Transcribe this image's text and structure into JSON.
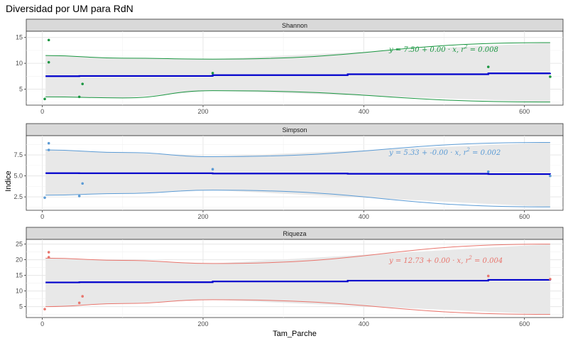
{
  "chart_data": {
    "type": "scatter",
    "title": "Diversidad por UM para RdN",
    "xlabel": "Tam_Parche",
    "ylabel": "Indice",
    "xlim": [
      -20,
      648
    ],
    "x_ticks": [
      0,
      200,
      400,
      600
    ],
    "grid": true,
    "legend": "none",
    "panels": [
      {
        "strip": "Shannon",
        "color": "#1a9641",
        "ylim": [
          1.9,
          16.2
        ],
        "y_ticks": [
          5,
          10,
          15
        ],
        "y_tick_labels": [
          "5",
          "10",
          "15"
        ],
        "points": [
          [
            3,
            3.1
          ],
          [
            8,
            14.5
          ],
          [
            8,
            10.2
          ],
          [
            46,
            3.5
          ],
          [
            50,
            6.0
          ],
          [
            212,
            8.1
          ],
          [
            555,
            9.3
          ],
          [
            632,
            7.4
          ]
        ],
        "fit": {
          "intercept": 7.5,
          "slope": 0.001,
          "x_range": [
            4,
            632
          ],
          "band_low": [
            3.5,
            3.3,
            4.7,
            2.5
          ],
          "band_high": [
            11.5,
            11.0,
            10.8,
            14.0
          ],
          "band_x": [
            4,
            100,
            212,
            632
          ]
        },
        "equation": {
          "prefix": "y = 7.50 + 0.00 · x,",
          "r2_label": "r",
          "r2_exp": "2",
          "r2_value": " = 0.008"
        }
      },
      {
        "strip": "Simpson",
        "color": "#5b9bd5",
        "ylim": [
          0.9,
          9.8
        ],
        "y_ticks": [
          2.5,
          5.0,
          7.5
        ],
        "y_tick_labels": [
          "2.5",
          "5.0",
          "7.5"
        ],
        "points": [
          [
            3,
            2.4
          ],
          [
            8,
            8.9
          ],
          [
            8,
            8.1
          ],
          [
            46,
            2.6
          ],
          [
            50,
            4.1
          ],
          [
            212,
            5.8
          ],
          [
            555,
            5.5
          ],
          [
            632,
            5.0
          ]
        ],
        "fit": {
          "intercept": 5.33,
          "slope": -0.0002,
          "x_range": [
            4,
            632
          ],
          "band_low": [
            2.7,
            2.9,
            3.3,
            1.3
          ],
          "band_high": [
            8.1,
            7.8,
            7.3,
            9.0
          ],
          "band_x": [
            4,
            100,
            212,
            632
          ]
        },
        "equation": {
          "prefix": "y = 5.33 + -0.00 · x,",
          "r2_label": "r",
          "r2_exp": "2",
          "r2_value": " = 0.002"
        }
      },
      {
        "strip": "Riqueza",
        "color": "#e8756d",
        "ylim": [
          1.5,
          26.5
        ],
        "y_ticks": [
          5,
          10,
          15,
          20,
          25
        ],
        "y_tick_labels": [
          "5",
          "10",
          "15",
          "20",
          "25"
        ],
        "points": [
          [
            3,
            4.2
          ],
          [
            8,
            22.4
          ],
          [
            8,
            20.8
          ],
          [
            46,
            6.2
          ],
          [
            50,
            8.3
          ],
          [
            555,
            14.8
          ],
          [
            632,
            13.8
          ]
        ],
        "fit": {
          "intercept": 12.73,
          "slope": 0.0015,
          "x_range": [
            4,
            632
          ],
          "band_low": [
            5.0,
            6.0,
            7.2,
            2.5
          ],
          "band_high": [
            20.5,
            19.8,
            18.8,
            25.0
          ],
          "band_x": [
            4,
            100,
            212,
            632
          ]
        },
        "equation": {
          "prefix": "y = 12.73 + 0.00 · x,",
          "r2_label": "r",
          "r2_exp": "2",
          "r2_value": " = 0.004"
        }
      }
    ]
  }
}
